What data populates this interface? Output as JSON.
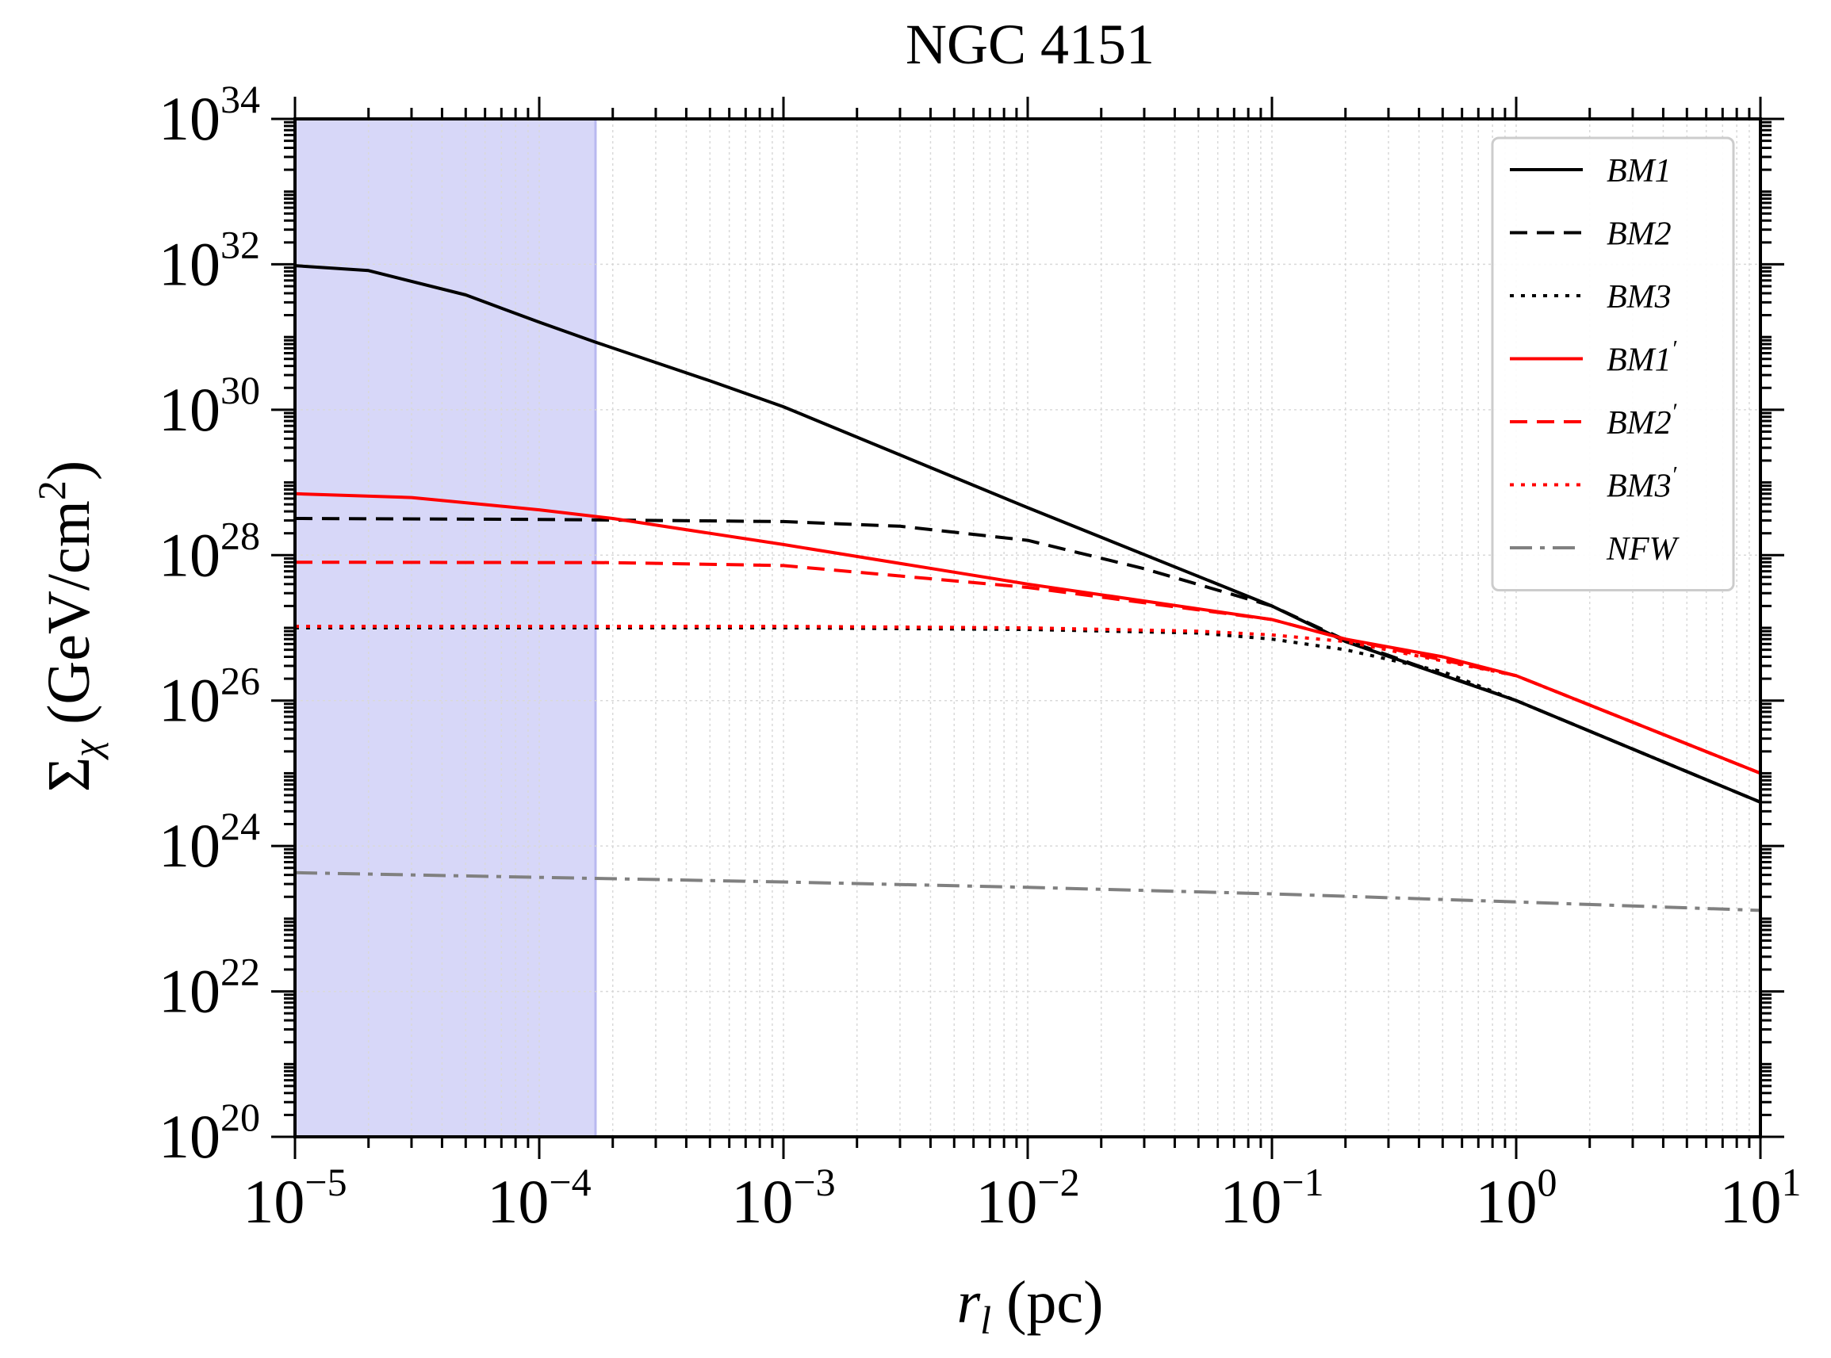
{
  "chart_data": {
    "type": "line",
    "title": "NGC 4151",
    "xlabel": {
      "var": "r",
      "sub": "l",
      "unit": " (pc)"
    },
    "ylabel": {
      "sym": "Σ",
      "sub": "χ",
      "pre": " (GeV/cm",
      "sup": "2",
      "post": ")"
    },
    "x_scale": "log",
    "y_scale": "log",
    "xlim": [
      1e-05,
      10
    ],
    "ylim": [
      1e+20,
      1e+34
    ],
    "x_ticks": [
      {
        "value": 1e-05,
        "base": "10",
        "exp": "−5"
      },
      {
        "value": 0.0001,
        "base": "10",
        "exp": "−4"
      },
      {
        "value": 0.001,
        "base": "10",
        "exp": "−3"
      },
      {
        "value": 0.01,
        "base": "10",
        "exp": "−2"
      },
      {
        "value": 0.1,
        "base": "10",
        "exp": "−1"
      },
      {
        "value": 1,
        "base": "10",
        "exp": "0"
      },
      {
        "value": 10,
        "base": "10",
        "exp": "1"
      }
    ],
    "y_ticks": [
      {
        "value": 1e+20,
        "base": "10",
        "exp": "20"
      },
      {
        "value": 1e+22,
        "base": "10",
        "exp": "22"
      },
      {
        "value": 1e+24,
        "base": "10",
        "exp": "24"
      },
      {
        "value": 1e+26,
        "base": "10",
        "exp": "26"
      },
      {
        "value": 1e+28,
        "base": "10",
        "exp": "28"
      },
      {
        "value": 1e+30,
        "base": "10",
        "exp": "30"
      },
      {
        "value": 1e+32,
        "base": "10",
        "exp": "32"
      },
      {
        "value": 1e+34,
        "base": "10",
        "exp": "34"
      }
    ],
    "grid": true,
    "legend_position": "top-right",
    "shaded_region": {
      "x_from": 1e-05,
      "x_to": 0.00017,
      "color": "#d7d7f8",
      "edge_color": "#b9b9f0"
    },
    "series": [
      {
        "name": "BM1",
        "prime": "",
        "color": "#000000",
        "style": "solid",
        "x": [
          1e-05,
          2e-05,
          5e-05,
          0.0001,
          0.00017,
          0.0005,
          0.001,
          0.01,
          0.1,
          0.2,
          1,
          10
        ],
        "y": [
          9.6e+31,
          8.2e+31,
          3.8e+31,
          1.6e+31,
          8.5e+30,
          2.5e+30,
          1.1e+30,
          4.5e+28,
          2e+27,
          6.5e+26,
          1e+26,
          4e+24
        ]
      },
      {
        "name": "BM2",
        "prime": "",
        "color": "#000000",
        "style": "dashed",
        "x": [
          1e-05,
          0.0001,
          0.001,
          0.003,
          0.01,
          0.03,
          0.1,
          0.2,
          1,
          10
        ],
        "y": [
          3.2e+28,
          3.1e+28,
          2.9e+28,
          2.5e+28,
          1.6e+28,
          6.5e+27,
          2e+27,
          6.8e+26,
          1e+26,
          4e+24
        ]
      },
      {
        "name": "BM3",
        "prime": "",
        "color": "#000000",
        "style": "dotted",
        "x": [
          1e-05,
          0.001,
          0.01,
          0.05,
          0.1,
          0.2,
          0.5,
          1,
          10
        ],
        "y": [
          1e+27,
          1e+27,
          9.5e+26,
          8.5e+26,
          7e+26,
          5e+26,
          2.5e+26,
          1e+26,
          4e+24
        ]
      },
      {
        "name": "BM1",
        "prime": "′",
        "color": "#ff0000",
        "style": "solid",
        "x": [
          1e-05,
          3e-05,
          0.0001,
          0.0002,
          0.001,
          0.01,
          0.1,
          0.2,
          0.5,
          1,
          10
        ],
        "y": [
          7e+28,
          6.2e+28,
          4.2e+28,
          3.2e+28,
          1.4e+28,
          4e+27,
          1.3e+27,
          7e+26,
          4e+26,
          2.2e+26,
          1e+25
        ]
      },
      {
        "name": "BM2",
        "prime": "′",
        "color": "#ff0000",
        "style": "dashed",
        "x": [
          1e-05,
          0.0002,
          0.001,
          0.01,
          0.1,
          0.2,
          1,
          10
        ],
        "y": [
          8e+27,
          7.9e+27,
          7.2e+27,
          3.6e+27,
          1.3e+27,
          7e+26,
          2.2e+26,
          1e+25
        ]
      },
      {
        "name": "BM3",
        "prime": "′",
        "color": "#ff0000",
        "style": "dotted",
        "x": [
          1e-05,
          0.001,
          0.01,
          0.05,
          0.1,
          0.2,
          1,
          10
        ],
        "y": [
          1.05e+27,
          1.05e+27,
          1e+27,
          9e+26,
          8e+26,
          6.5e+26,
          2.2e+26,
          1e+25
        ]
      },
      {
        "name": "NFW",
        "prime": "",
        "color": "#808080",
        "style": "dashdot",
        "x": [
          1e-05,
          0.0001,
          0.001,
          0.01,
          0.1,
          1,
          10
        ],
        "y": [
          4.3e+23,
          3.7e+23,
          3.2e+23,
          2.7e+23,
          2.2e+23,
          1.7e+23,
          1.3e+23
        ]
      }
    ]
  }
}
